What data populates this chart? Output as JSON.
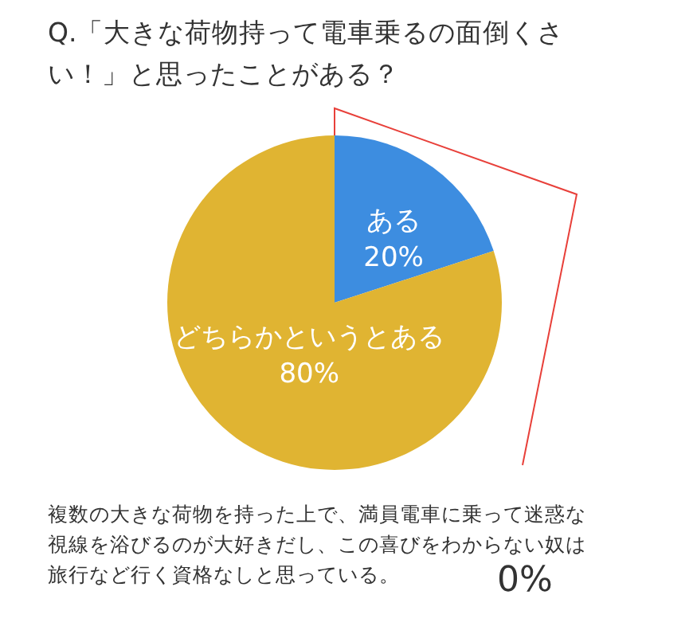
{
  "chart_data": {
    "type": "pie",
    "title": "Q.「大きな荷物持って電車乗るの面倒くさい！」と思ったことがある？",
    "categories": [
      "ある",
      "どちらかというとある",
      "複数の大きな荷物を持った上で、満員電車に乗って迷惑な視線を浴びるのが大好きだし、この喜びをわからない奴は旅行など行く資格なしと思っている。"
    ],
    "values": [
      20,
      80,
      0
    ],
    "colors": [
      "#3d8de0",
      "#e0b432",
      "#e8403a"
    ],
    "value_labels": [
      "20%",
      "80%",
      "0%"
    ]
  }
}
